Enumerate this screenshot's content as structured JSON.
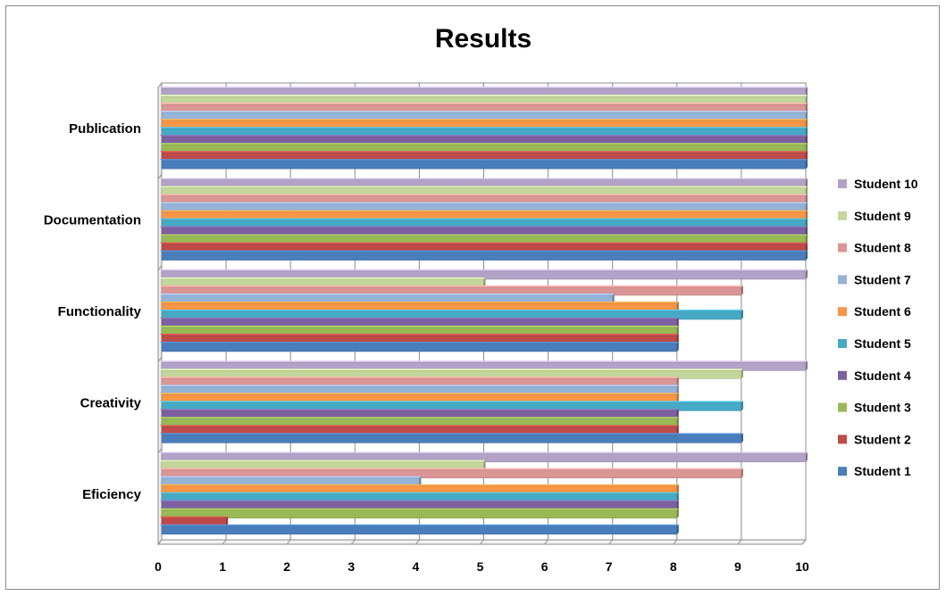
{
  "chart_data": {
    "type": "bar",
    "orientation": "horizontal",
    "title": "Results",
    "categories": [
      "Eficiency",
      "Creativity",
      "Functionality",
      "Documentation",
      "Publication"
    ],
    "xlim": [
      0,
      10
    ],
    "xticks": [
      "0",
      "1",
      "2",
      "3",
      "4",
      "5",
      "6",
      "7",
      "8",
      "9",
      "10"
    ],
    "grid": true,
    "legend_position": "right",
    "series": [
      {
        "name": "Student 1",
        "color": "#4a7ebb",
        "values": [
          8,
          9,
          8,
          10,
          10
        ]
      },
      {
        "name": "Student 2",
        "color": "#be4b48",
        "values": [
          1,
          8,
          8,
          10,
          10
        ]
      },
      {
        "name": "Student 3",
        "color": "#98b954",
        "values": [
          8,
          8,
          8,
          10,
          10
        ]
      },
      {
        "name": "Student 4",
        "color": "#7d60a0",
        "values": [
          8,
          8,
          8,
          10,
          10
        ]
      },
      {
        "name": "Student 5",
        "color": "#46aac5",
        "values": [
          8,
          9,
          9,
          10,
          10
        ]
      },
      {
        "name": "Student 6",
        "color": "#f79646",
        "values": [
          8,
          8,
          8,
          10,
          10
        ]
      },
      {
        "name": "Student 7",
        "color": "#95b3d7",
        "values": [
          4,
          8,
          7,
          10,
          10
        ]
      },
      {
        "name": "Student 8",
        "color": "#da9694",
        "values": [
          9,
          8,
          9,
          10,
          10
        ]
      },
      {
        "name": "Student 9",
        "color": "#c3d69b",
        "values": [
          5,
          9,
          5,
          10,
          10
        ]
      },
      {
        "name": "Student 10",
        "color": "#b2a2c7",
        "values": [
          10,
          10,
          10,
          10,
          10
        ]
      }
    ]
  }
}
